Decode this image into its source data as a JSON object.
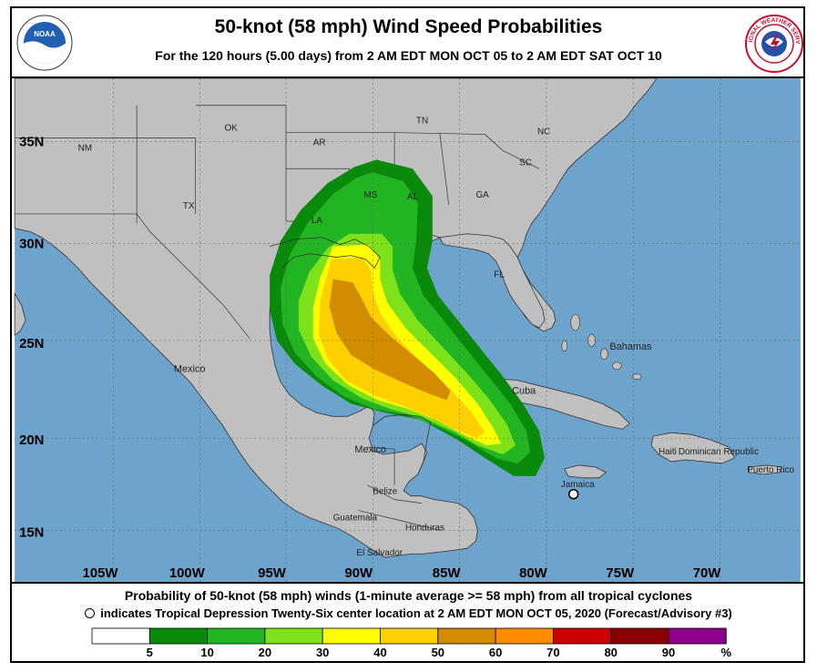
{
  "title": "50-knot (58 mph) Wind Speed Probabilities",
  "subtitle": "For the 120 hours (5.00 days) from 2 AM EDT MON OCT 05 to 2 AM EDT SAT OCT 10",
  "logos": {
    "left": "noaa-logo",
    "right": "nws-logo",
    "right_text": "NATIONAL WEATHER SERVICE"
  },
  "latitude_labels": [
    "35N",
    "30N",
    "25N",
    "20N",
    "15N"
  ],
  "longitude_labels": [
    "105W",
    "100W",
    "95W",
    "90W",
    "85W",
    "80W",
    "75W",
    "70W"
  ],
  "places": {
    "states": [
      "NM",
      "OK",
      "AR",
      "TN",
      "NC",
      "SC",
      "MS",
      "AL",
      "GA",
      "TX",
      "LA",
      "FL"
    ],
    "countries": [
      "Mexico",
      "Mexico",
      "Bahamas",
      "Cuba",
      "Belize",
      "Guatemala",
      "Honduras",
      "El Salvador",
      "Jamaica",
      "Haiti",
      "Dominican Republic",
      "Puerto Rico"
    ]
  },
  "storm_marker": "tropical-depression-center",
  "caption_line1": "Probability of 50-knot (58 mph) winds (1-minute average >= 58 mph) from all tropical cyclones",
  "caption_line2": "indicates Tropical Depression Twenty-Six center location at 2 AM EDT MON OCT 05, 2020 (Forecast/Advisory #3)",
  "colorbar": {
    "labels": [
      "5",
      "10",
      "20",
      "30",
      "40",
      "50",
      "60",
      "70",
      "80",
      "90",
      "%"
    ],
    "colors": [
      "#ffffff",
      "#0a8a0a",
      "#22b422",
      "#7ee21a",
      "#ffff00",
      "#ffd000",
      "#d28c00",
      "#ff8c00",
      "#cc0000",
      "#8b0000",
      "#8b008b"
    ]
  },
  "colors": {
    "ocean": "#6ea3cc",
    "land": "#c0c0c0"
  }
}
